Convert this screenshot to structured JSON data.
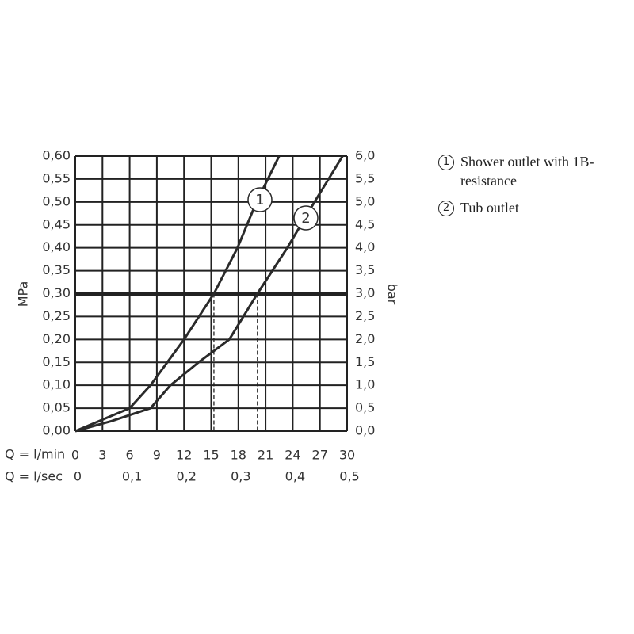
{
  "chart_data": {
    "type": "line",
    "xlabel": "Q = l/min",
    "x2label": "Q = l/sec",
    "ylabel": "MPa",
    "y2label": "bar",
    "xlim": [
      0,
      30
    ],
    "xticks": [
      0,
      3,
      6,
      9,
      12,
      15,
      18,
      21,
      24,
      27,
      30
    ],
    "x2lim": [
      0,
      0.5
    ],
    "x2ticks": [
      0,
      {
        "value": 0.1,
        "label": "0,1"
      },
      {
        "value": 0.2,
        "label": "0,2"
      },
      {
        "value": 0.3,
        "label": "0,3"
      },
      {
        "value": 0.4,
        "label": "0,4"
      },
      {
        "value": 0.5,
        "label": "0,5"
      }
    ],
    "ylim": [
      0,
      0.6
    ],
    "yticks": [
      {
        "value": 0,
        "label": "0,00"
      },
      {
        "value": 0.05,
        "label": "0,05"
      },
      {
        "value": 0.1,
        "label": "0,10"
      },
      {
        "value": 0.15,
        "label": "0,15"
      },
      {
        "value": 0.2,
        "label": "0,20"
      },
      {
        "value": 0.25,
        "label": "0,25"
      },
      {
        "value": 0.3,
        "label": "0,30"
      },
      {
        "value": 0.35,
        "label": "0,35"
      },
      {
        "value": 0.4,
        "label": "0,40"
      },
      {
        "value": 0.45,
        "label": "0,45"
      },
      {
        "value": 0.5,
        "label": "0,50"
      },
      {
        "value": 0.55,
        "label": "0,55"
      },
      {
        "value": 0.6,
        "label": "0,60"
      }
    ],
    "y2lim": [
      0,
      6
    ],
    "y2ticks": [
      {
        "value": 0,
        "label": "0,0"
      },
      {
        "value": 0.5,
        "label": "0,5"
      },
      {
        "value": 1,
        "label": "1,0"
      },
      {
        "value": 1.5,
        "label": "1,5"
      },
      {
        "value": 2,
        "label": "2,0"
      },
      {
        "value": 2.5,
        "label": "2,5"
      },
      {
        "value": 3,
        "label": "3,0"
      },
      {
        "value": 3.5,
        "label": "3,5"
      },
      {
        "value": 4,
        "label": "4,0"
      },
      {
        "value": 4.5,
        "label": "4,5"
      },
      {
        "value": 5,
        "label": "5,0"
      },
      {
        "value": 5.5,
        "label": "5,5"
      },
      {
        "value": 6,
        "label": "6,0"
      }
    ],
    "grid": true,
    "reference_y": 0.3,
    "reference_x": [
      15.3,
      20.1
    ],
    "series": [
      {
        "name": "Shower outlet with 1B-resistance",
        "label": "1",
        "color": "#2a2a2a",
        "x": [
          0,
          3,
          6,
          8.3,
          12,
          15.3,
          17.9,
          20,
          22.5
        ],
        "values": [
          0,
          0.025,
          0.05,
          0.1,
          0.2,
          0.3,
          0.4,
          0.5,
          0.6
        ]
      },
      {
        "name": "Tub outlet",
        "label": "2",
        "color": "#2a2a2a",
        "x": [
          0,
          4,
          8.3,
          10.5,
          13.6,
          17,
          20.1,
          23.4,
          26.4,
          29.5
        ],
        "values": [
          0,
          0.022,
          0.05,
          0.1,
          0.15,
          0.2,
          0.3,
          0.4,
          0.5,
          0.6
        ]
      }
    ]
  }
}
